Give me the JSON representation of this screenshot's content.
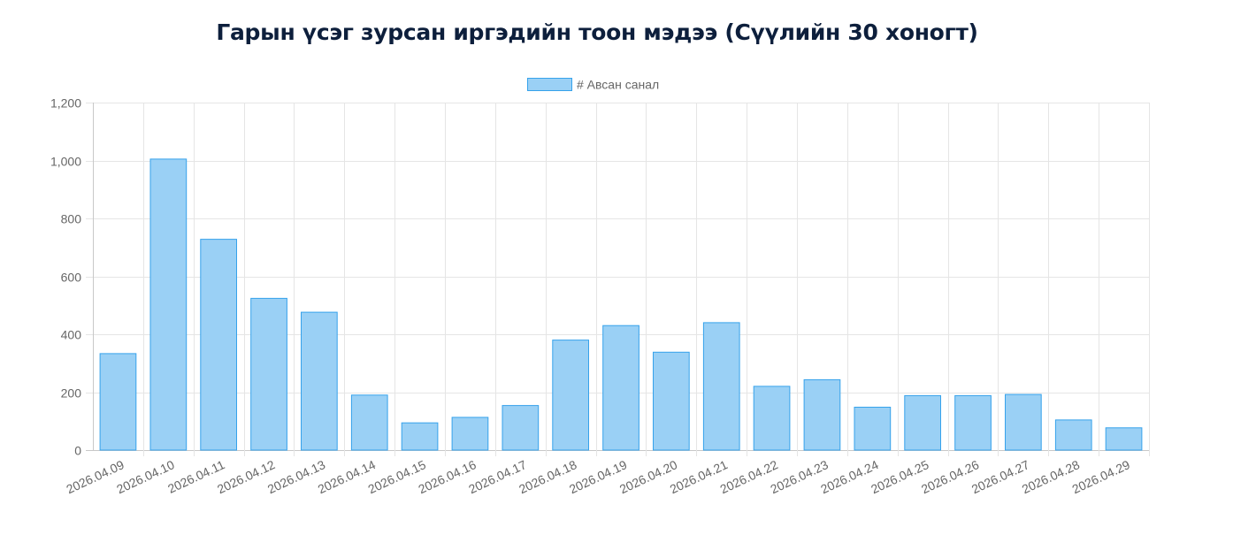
{
  "page": {
    "title": "Гарын үсэг зурсан иргэдийн тоон мэдээ (Сүүлийн 30 хоногт)"
  },
  "chart_data": {
    "type": "bar",
    "title": "Гарын үсэг зурсан иргэдийн тоон мэдээ (Сүүлийн 30 хоногт)",
    "xlabel": "",
    "ylabel": "",
    "ylim": [
      0,
      1200
    ],
    "yticks": [
      0,
      200,
      400,
      600,
      800,
      1000,
      1200
    ],
    "ytick_labels": [
      "0",
      "200",
      "400",
      "600",
      "800",
      "1,000",
      "1,200"
    ],
    "grid": true,
    "legend_position": "top-center",
    "categories": [
      "2026.04.09",
      "2026.04.10",
      "2026.04.11",
      "2026.04.12",
      "2026.04.13",
      "2026.04.14",
      "2026.04.15",
      "2026.04.16",
      "2026.04.17",
      "2026.04.18",
      "2026.04.19",
      "2026.04.20",
      "2026.04.21",
      "2026.04.22",
      "2026.04.23",
      "2026.04.24",
      "2026.04.25",
      "2026.04.26",
      "2026.04.27",
      "2026.04.28",
      "2026.04.29"
    ],
    "series": [
      {
        "name": "# Авсан санал",
        "color": "#9ad0f5",
        "border_color": "#36a2eb",
        "values": [
          333,
          1005,
          728,
          524,
          476,
          190,
          94,
          113,
          154,
          380,
          430,
          338,
          440,
          220,
          243,
          148,
          188,
          188,
          192,
          104,
          77
        ]
      }
    ]
  }
}
